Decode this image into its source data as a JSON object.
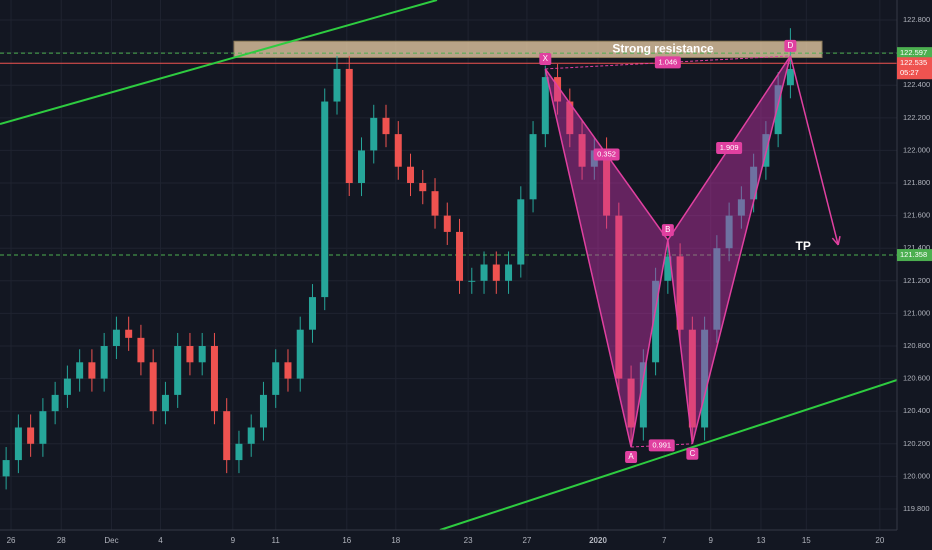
{
  "chart_data": {
    "type": "candlestick",
    "up_color": "#26a69a",
    "down_color": "#ef5350",
    "grid": true,
    "xlim": [
      -0.5,
      72.7
    ],
    "xticks": [
      {
        "value": 0.4,
        "label": "26"
      },
      {
        "value": 4.5,
        "label": "28"
      },
      {
        "value": 8.6,
        "label": "Dec"
      },
      {
        "value": 12.6,
        "label": "4"
      },
      {
        "value": 18.5,
        "label": "9"
      },
      {
        "value": 22.0,
        "label": "11"
      },
      {
        "value": 27.8,
        "label": "16"
      },
      {
        "value": 31.8,
        "label": "18"
      },
      {
        "value": 37.7,
        "label": "23"
      },
      {
        "value": 42.5,
        "label": "27"
      },
      {
        "value": 48.3,
        "label": "2020"
      },
      {
        "value": 53.7,
        "label": "7"
      },
      {
        "value": 57.5,
        "label": "9"
      },
      {
        "value": 61.6,
        "label": "13"
      },
      {
        "value": 65.3,
        "label": "15"
      },
      {
        "value": 71.3,
        "label": "20"
      }
    ],
    "ylim": [
      119.671,
      122.923
    ],
    "yticks": [
      {
        "value": 122.8,
        "label": "122.800"
      },
      {
        "value": 122.6,
        "label": "122.600"
      },
      {
        "value": 122.4,
        "label": "122.400"
      },
      {
        "value": 122.2,
        "label": "122.200"
      },
      {
        "value": 122.0,
        "label": "122.000"
      },
      {
        "value": 121.8,
        "label": "121.800"
      },
      {
        "value": 121.6,
        "label": "121.600"
      },
      {
        "value": 121.4,
        "label": "121.400"
      },
      {
        "value": 121.2,
        "label": "121.200"
      },
      {
        "value": 121.0,
        "label": "121.000"
      },
      {
        "value": 120.8,
        "label": "120.800"
      },
      {
        "value": 120.6,
        "label": "120.600"
      },
      {
        "value": 120.4,
        "label": "120.400"
      },
      {
        "value": 120.2,
        "label": "120.200"
      },
      {
        "value": 120.0,
        "label": "120.000"
      },
      {
        "value": 119.8,
        "label": "119.800"
      }
    ],
    "open": [
      120.0,
      120.1,
      120.3,
      120.2,
      120.4,
      120.5,
      120.6,
      120.7,
      120.6,
      120.8,
      120.9,
      120.85,
      120.7,
      120.4,
      120.5,
      120.8,
      120.7,
      120.8,
      120.4,
      120.1,
      120.2,
      120.3,
      120.5,
      120.7,
      120.6,
      120.9,
      121.1,
      122.3,
      122.5,
      121.8,
      122.0,
      122.2,
      122.1,
      121.9,
      121.8,
      121.75,
      121.6,
      121.5,
      121.2,
      121.2,
      121.3,
      121.2,
      121.3,
      121.7,
      122.1,
      122.45,
      122.3,
      122.1,
      121.9,
      122.0,
      121.6,
      120.6,
      120.3,
      120.7,
      121.2,
      121.35,
      120.9,
      120.3,
      120.9,
      121.4,
      121.6,
      121.7,
      121.9,
      122.1,
      122.4
    ],
    "high": [
      120.18,
      120.38,
      120.38,
      120.48,
      120.58,
      120.68,
      120.78,
      120.78,
      120.88,
      120.98,
      120.98,
      120.93,
      120.78,
      120.58,
      120.88,
      120.88,
      120.88,
      120.88,
      120.48,
      120.28,
      120.38,
      120.58,
      120.78,
      120.78,
      120.98,
      121.18,
      122.38,
      122.58,
      122.58,
      122.08,
      122.28,
      122.28,
      122.18,
      121.98,
      121.88,
      121.83,
      121.68,
      121.58,
      121.28,
      121.38,
      121.38,
      121.38,
      121.78,
      122.18,
      122.52,
      122.53,
      122.38,
      122.18,
      122.08,
      122.08,
      121.68,
      120.68,
      120.78,
      121.28,
      121.45,
      121.43,
      120.98,
      120.98,
      121.48,
      121.68,
      121.78,
      121.98,
      122.18,
      122.48,
      122.75
    ],
    "low": [
      119.92,
      120.02,
      120.12,
      120.12,
      120.32,
      120.42,
      120.52,
      120.52,
      120.52,
      120.72,
      120.77,
      120.62,
      120.32,
      120.32,
      120.42,
      120.62,
      120.62,
      120.32,
      120.02,
      120.02,
      120.12,
      120.22,
      120.42,
      120.52,
      120.52,
      120.82,
      121.02,
      122.22,
      121.72,
      121.72,
      121.92,
      122.02,
      121.82,
      121.72,
      121.67,
      121.52,
      121.42,
      121.12,
      121.12,
      121.12,
      121.12,
      121.12,
      121.22,
      121.62,
      122.02,
      122.22,
      122.02,
      121.82,
      121.82,
      121.52,
      120.52,
      120.18,
      120.22,
      120.62,
      121.12,
      120.82,
      120.2,
      120.22,
      120.82,
      121.32,
      121.52,
      121.62,
      121.82,
      122.02,
      122.32
    ],
    "close": [
      120.1,
      120.3,
      120.2,
      120.4,
      120.5,
      120.6,
      120.7,
      120.6,
      120.8,
      120.9,
      120.85,
      120.7,
      120.4,
      120.5,
      120.8,
      120.7,
      120.8,
      120.4,
      120.1,
      120.2,
      120.3,
      120.5,
      120.7,
      120.6,
      120.9,
      121.1,
      122.3,
      122.5,
      121.8,
      122.0,
      122.2,
      122.1,
      121.9,
      121.8,
      121.75,
      121.6,
      121.5,
      121.2,
      121.2,
      121.3,
      121.2,
      121.3,
      121.7,
      122.1,
      122.45,
      122.3,
      122.1,
      121.9,
      122.0,
      121.6,
      120.6,
      120.3,
      120.7,
      121.2,
      121.35,
      120.9,
      120.3,
      120.9,
      121.4,
      121.6,
      121.7,
      121.9,
      122.1,
      122.4,
      122.5
    ],
    "price_lines": [
      {
        "value": 122.597,
        "color": "#4caf50",
        "dashed": true
      },
      {
        "value": 122.535,
        "color": "#ef5350",
        "dashed": false,
        "countdown": "05:27"
      },
      {
        "value": 121.358,
        "color": "#4caf50",
        "dashed": true
      }
    ],
    "resistance_zone": {
      "label": "Strong resistance",
      "top": 122.67,
      "bottom": 122.57
    },
    "pattern": {
      "color": "#e040a0",
      "points": [
        {
          "label": "X",
          "x": 44,
          "price": 122.5
        },
        {
          "label": "A",
          "x": 51,
          "price": 120.18
        },
        {
          "label": "B",
          "x": 54,
          "price": 121.45
        },
        {
          "label": "C",
          "x": 56,
          "price": 120.2
        },
        {
          "label": "D",
          "x": 64,
          "price": 122.58
        }
      ],
      "ratios": [
        {
          "label": "0.352",
          "from": 0,
          "to": 2
        },
        {
          "label": "1.046",
          "from": 0,
          "to": 4
        },
        {
          "label": "1.909",
          "from": 2,
          "to": 4
        },
        {
          "label": "0.991",
          "from": 1,
          "to": 3
        }
      ]
    },
    "target": {
      "label": "TP",
      "x": 67.9,
      "price": 121.42
    }
  }
}
